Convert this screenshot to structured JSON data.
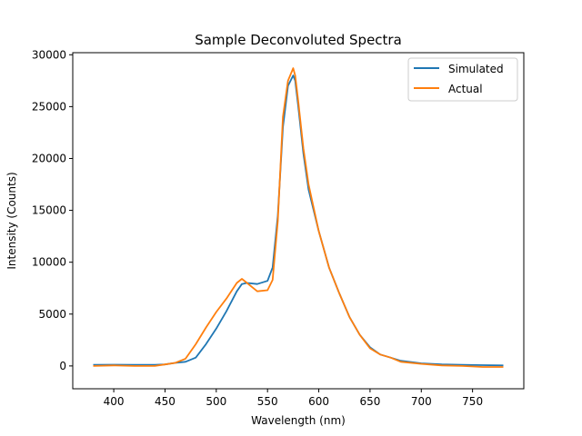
{
  "chart_data": {
    "type": "line",
    "title": "Sample Deconvoluted Spectra",
    "xlabel": "Wavelength (nm)",
    "ylabel": "Intensity (Counts)",
    "xlim": [
      360,
      800
    ],
    "ylim": [
      -2200,
      30200
    ],
    "xticks": [
      400,
      450,
      500,
      550,
      600,
      650,
      700,
      750
    ],
    "xtick_labels": [
      "400",
      "450",
      "500",
      "550",
      "600",
      "650",
      "700",
      "750"
    ],
    "yticks": [
      0,
      5000,
      10000,
      15000,
      20000,
      25000,
      30000
    ],
    "ytick_labels": [
      "0",
      "5000",
      "10000",
      "15000",
      "20000",
      "25000",
      "30000"
    ],
    "grid": false,
    "legend_position": "top-right",
    "series": [
      {
        "name": "Simulated",
        "color": "#1f77b4",
        "x": [
          380,
          400,
          420,
          440,
          450,
          460,
          470,
          480,
          490,
          500,
          510,
          520,
          525,
          530,
          540,
          550,
          555,
          560,
          565,
          570,
          575,
          577,
          580,
          585,
          590,
          600,
          610,
          620,
          630,
          640,
          650,
          660,
          670,
          680,
          700,
          720,
          740,
          760,
          780
        ],
        "y": [
          100,
          120,
          100,
          100,
          150,
          300,
          400,
          800,
          2100,
          3600,
          5300,
          7200,
          7900,
          8000,
          7900,
          8200,
          9500,
          14500,
          23000,
          27000,
          28000,
          27500,
          25000,
          20500,
          17000,
          13000,
          9500,
          7000,
          4700,
          3000,
          1800,
          1100,
          800,
          500,
          250,
          150,
          100,
          80,
          50
        ]
      },
      {
        "name": "Actual",
        "color": "#ff7f0e",
        "x": [
          380,
          400,
          420,
          440,
          450,
          460,
          470,
          480,
          490,
          500,
          510,
          520,
          525,
          530,
          540,
          550,
          555,
          560,
          565,
          570,
          575,
          577,
          580,
          585,
          590,
          600,
          610,
          620,
          630,
          640,
          650,
          660,
          670,
          680,
          700,
          720,
          740,
          760,
          780
        ],
        "y": [
          0,
          50,
          0,
          0,
          150,
          300,
          700,
          2100,
          3700,
          5200,
          6500,
          8000,
          8400,
          8000,
          7200,
          7300,
          8300,
          14000,
          24000,
          27500,
          28700,
          28000,
          25500,
          21000,
          17500,
          13000,
          9500,
          7000,
          4700,
          3000,
          1700,
          1100,
          800,
          400,
          200,
          50,
          0,
          -100,
          -100
        ]
      }
    ]
  }
}
